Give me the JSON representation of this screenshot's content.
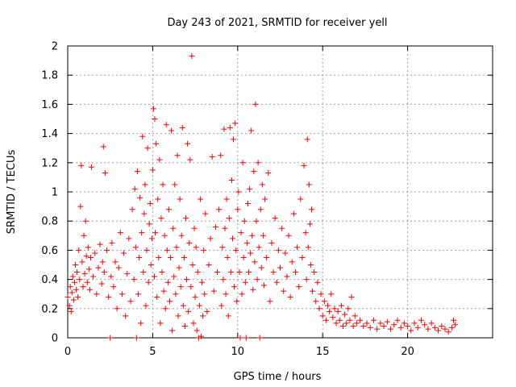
{
  "chart_data": {
    "type": "scatter",
    "title": "Day 243 of 2021, SRMTID for receiver yell",
    "xlabel": "GPS time / hours",
    "ylabel": "SRMTID / TECUs",
    "xlim": [
      0,
      25
    ],
    "ylim": [
      0,
      2
    ],
    "x_ticks": [
      0,
      5,
      10,
      15,
      20
    ],
    "x_tick_labels": [
      "0",
      "5",
      "10",
      "15",
      "20"
    ],
    "y_ticks": [
      0,
      0.2,
      0.4,
      0.6,
      0.8,
      1,
      1.2,
      1.4,
      1.6,
      1.8,
      2
    ],
    "y_tick_labels": [
      "0",
      "0.2",
      "0.4",
      "0.6",
      "0.8",
      "1",
      "1.2",
      "1.4",
      "1.6",
      "1.8",
      "2"
    ],
    "grid": true,
    "marker": "+",
    "series_color": "#ff0000",
    "series": [
      {
        "name": "SRMTID",
        "points": [
          [
            0.0,
            0.28
          ],
          [
            0.1,
            0.22
          ],
          [
            0.15,
            0.35
          ],
          [
            0.2,
            0.18
          ],
          [
            0.25,
            0.31
          ],
          [
            0.3,
            0.42
          ],
          [
            0.35,
            0.26
          ],
          [
            0.4,
            0.38
          ],
          [
            0.45,
            0.5
          ],
          [
            0.5,
            0.33
          ],
          [
            0.55,
            0.45
          ],
          [
            0.6,
            0.28
          ],
          [
            0.65,
            0.6
          ],
          [
            0.7,
            0.4
          ],
          [
            0.75,
            0.9
          ],
          [
            0.8,
            1.18
          ],
          [
            0.85,
            0.52
          ],
          [
            0.9,
            0.35
          ],
          [
            0.95,
            0.7
          ],
          [
            1.0,
            0.44
          ],
          [
            1.05,
            0.8
          ],
          [
            1.1,
            0.56
          ],
          [
            1.15,
            0.38
          ],
          [
            1.2,
            0.62
          ],
          [
            1.25,
            0.47
          ],
          [
            1.3,
            0.33
          ],
          [
            1.35,
            0.55
          ],
          [
            1.4,
            1.17
          ],
          [
            1.5,
            0.42
          ],
          [
            1.6,
            0.58
          ],
          [
            1.7,
            0.3
          ],
          [
            1.8,
            0.48
          ],
          [
            1.9,
            0.64
          ],
          [
            2.0,
            0.37
          ],
          [
            2.05,
            0.52
          ],
          [
            2.1,
            1.31
          ],
          [
            2.15,
            0.45
          ],
          [
            2.2,
            1.13
          ],
          [
            2.3,
            0.6
          ],
          [
            2.4,
            0.28
          ],
          [
            2.5,
            0.0
          ],
          [
            2.55,
            0.42
          ],
          [
            2.6,
            0.65
          ],
          [
            2.7,
            0.35
          ],
          [
            2.8,
            0.52
          ],
          [
            2.9,
            0.2
          ],
          [
            3.0,
            0.48
          ],
          [
            3.1,
            0.72
          ],
          [
            3.2,
            0.3
          ],
          [
            3.3,
            0.58
          ],
          [
            3.4,
            0.15
          ],
          [
            3.5,
            0.44
          ],
          [
            3.6,
            0.68
          ],
          [
            3.7,
            0.25
          ],
          [
            3.8,
            0.88
          ],
          [
            3.9,
            0.4
          ],
          [
            3.95,
            1.02
          ],
          [
            4.0,
            0.62
          ],
          [
            4.05,
            0.0
          ],
          [
            4.1,
            1.14
          ],
          [
            4.15,
            0.3
          ],
          [
            4.2,
            0.55
          ],
          [
            4.25,
            0.96
          ],
          [
            4.3,
            0.1
          ],
          [
            4.35,
            0.72
          ],
          [
            4.4,
            1.38
          ],
          [
            4.45,
            0.45
          ],
          [
            4.5,
            0.85
          ],
          [
            4.55,
            1.05
          ],
          [
            4.6,
            0.22
          ],
          [
            4.65,
            0.6
          ],
          [
            4.7,
            1.3
          ],
          [
            4.75,
            0.38
          ],
          [
            4.8,
            0.78
          ],
          [
            4.85,
            0.92
          ],
          [
            4.9,
            0.5
          ],
          [
            4.95,
            0.68
          ],
          [
            5.0,
            1.15
          ],
          [
            5.05,
            1.57
          ],
          [
            5.1,
            0.42
          ],
          [
            5.12,
            1.5
          ],
          [
            5.15,
            0.72
          ],
          [
            5.2,
            1.33
          ],
          [
            5.25,
            0.28
          ],
          [
            5.3,
            0.95
          ],
          [
            5.35,
            0.55
          ],
          [
            5.4,
            1.22
          ],
          [
            5.45,
            0.1
          ],
          [
            5.5,
            0.82
          ],
          [
            5.55,
            0.45
          ],
          [
            5.6,
            1.05
          ],
          [
            5.65,
            0.32
          ],
          [
            5.7,
            0.7
          ],
          [
            5.75,
            0.2
          ],
          [
            5.8,
            1.46
          ],
          [
            5.85,
            0.6
          ],
          [
            5.9,
            0.38
          ],
          [
            5.95,
            0.88
          ],
          [
            6.0,
            0.25
          ],
          [
            6.05,
            0.55
          ],
          [
            6.1,
            1.42
          ],
          [
            6.15,
            0.05
          ],
          [
            6.2,
            0.75
          ],
          [
            6.25,
            0.42
          ],
          [
            6.3,
            1.05
          ],
          [
            6.35,
            0.3
          ],
          [
            6.4,
            0.62
          ],
          [
            6.45,
            1.25
          ],
          [
            6.5,
            0.15
          ],
          [
            6.55,
            0.48
          ],
          [
            6.6,
            0.95
          ],
          [
            6.65,
            0.35
          ],
          [
            6.7,
            0.7
          ],
          [
            6.75,
            1.44
          ],
          [
            6.8,
            0.22
          ],
          [
            6.85,
            0.55
          ],
          [
            6.9,
            0.08
          ],
          [
            6.95,
            0.82
          ],
          [
            7.0,
            0.4
          ],
          [
            7.05,
            1.33
          ],
          [
            7.1,
            0.18
          ],
          [
            7.15,
            0.65
          ],
          [
            7.2,
            1.22
          ],
          [
            7.25,
            0.35
          ],
          [
            7.3,
            1.93
          ],
          [
            7.35,
            0.5
          ],
          [
            7.4,
            0.1
          ],
          [
            7.45,
            0.75
          ],
          [
            7.5,
            0.28
          ],
          [
            7.55,
            0.62
          ],
          [
            7.6,
            0.05
          ],
          [
            7.65,
            0.45
          ],
          [
            7.7,
            0.0
          ],
          [
            7.75,
            0.22
          ],
          [
            7.8,
            0.95
          ],
          [
            7.85,
            0.01
          ],
          [
            7.9,
            0.38
          ],
          [
            7.95,
            0.15
          ],
          [
            8.0,
            0.6
          ],
          [
            8.05,
            0.3
          ],
          [
            8.1,
            0.85
          ],
          [
            8.2,
            0.18
          ],
          [
            8.3,
            0.5
          ],
          [
            8.4,
            0.68
          ],
          [
            8.5,
            1.24
          ],
          [
            8.6,
            0.32
          ],
          [
            8.7,
            0.76
          ],
          [
            8.8,
            0.45
          ],
          [
            8.9,
            0.88
          ],
          [
            9.0,
            1.25
          ],
          [
            9.05,
            0.22
          ],
          [
            9.1,
            0.62
          ],
          [
            9.15,
            0.4
          ],
          [
            9.2,
            1.43
          ],
          [
            9.25,
            0.75
          ],
          [
            9.3,
            0.3
          ],
          [
            9.35,
            0.95
          ],
          [
            9.4,
            0.55
          ],
          [
            9.45,
            0.15
          ],
          [
            9.5,
            0.82
          ],
          [
            9.55,
            1.44
          ],
          [
            9.6,
            0.45
          ],
          [
            9.65,
            1.08
          ],
          [
            9.7,
            0.68
          ],
          [
            9.75,
            1.36
          ],
          [
            9.8,
            0.35
          ],
          [
            9.85,
            1.47
          ],
          [
            9.9,
            0.6
          ],
          [
            9.95,
            0.25
          ],
          [
            10.0,
            0.88
          ],
          [
            10.05,
            1.0
          ],
          [
            10.1,
            0.45
          ],
          [
            10.15,
            0.0
          ],
          [
            10.2,
            0.72
          ],
          [
            10.25,
            0.3
          ],
          [
            10.3,
            1.2
          ],
          [
            10.35,
            0.55
          ],
          [
            10.4,
            0.8
          ],
          [
            10.45,
            0.38
          ],
          [
            10.5,
            0.0
          ],
          [
            10.55,
            0.65
          ],
          [
            10.6,
            0.92
          ],
          [
            10.65,
            0.45
          ],
          [
            10.7,
            1.02
          ],
          [
            10.75,
            0.58
          ],
          [
            10.8,
            1.42
          ],
          [
            10.85,
            0.7
          ],
          [
            10.9,
            0.33
          ],
          [
            10.95,
            1.14
          ],
          [
            11.0,
            0.52
          ],
          [
            11.05,
            1.6
          ],
          [
            11.1,
            0.8
          ],
          [
            11.15,
            0.4
          ],
          [
            11.2,
            1.2
          ],
          [
            11.25,
            0.62
          ],
          [
            11.3,
            0.0
          ],
          [
            11.35,
            0.88
          ],
          [
            11.4,
            0.48
          ],
          [
            11.45,
            1.05
          ],
          [
            11.5,
            0.7
          ],
          [
            11.55,
            0.36
          ],
          [
            11.6,
            0.95
          ],
          [
            11.7,
            0.55
          ],
          [
            11.8,
            1.13
          ],
          [
            11.9,
            0.25
          ],
          [
            12.0,
            0.65
          ],
          [
            12.1,
            0.45
          ],
          [
            12.2,
            0.82
          ],
          [
            12.3,
            0.38
          ],
          [
            12.4,
            0.6
          ],
          [
            12.5,
            0.48
          ],
          [
            12.6,
            0.75
          ],
          [
            12.7,
            0.32
          ],
          [
            12.8,
            0.58
          ],
          [
            12.9,
            0.42
          ],
          [
            13.0,
            0.7
          ],
          [
            13.1,
            0.28
          ],
          [
            13.2,
            0.52
          ],
          [
            13.3,
            0.85
          ],
          [
            13.4,
            0.45
          ],
          [
            13.5,
            0.62
          ],
          [
            13.6,
            0.35
          ],
          [
            13.7,
            0.95
          ],
          [
            13.8,
            0.55
          ],
          [
            13.9,
            1.18
          ],
          [
            14.0,
            0.72
          ],
          [
            14.05,
            0.4
          ],
          [
            14.1,
            1.36
          ],
          [
            14.15,
            0.62
          ],
          [
            14.2,
            1.05
          ],
          [
            14.25,
            0.78
          ],
          [
            14.3,
            0.5
          ],
          [
            14.35,
            0.88
          ],
          [
            14.4,
            0.32
          ],
          [
            14.5,
            0.45
          ],
          [
            14.6,
            0.25
          ],
          [
            14.7,
            0.38
          ],
          [
            14.8,
            0.2
          ],
          [
            14.9,
            0.3
          ],
          [
            15.0,
            0.15
          ],
          [
            15.1,
            0.25
          ],
          [
            15.2,
            0.12
          ],
          [
            15.3,
            0.22
          ],
          [
            15.4,
            0.18
          ],
          [
            15.5,
            0.3
          ],
          [
            15.6,
            0.14
          ],
          [
            15.7,
            0.2
          ],
          [
            15.8,
            0.1
          ],
          [
            15.9,
            0.18
          ],
          [
            16.0,
            0.12
          ],
          [
            16.1,
            0.22
          ],
          [
            16.2,
            0.08
          ],
          [
            16.3,
            0.16
          ],
          [
            16.4,
            0.1
          ],
          [
            16.5,
            0.2
          ],
          [
            16.6,
            0.12
          ],
          [
            16.7,
            0.28
          ],
          [
            16.8,
            0.08
          ],
          [
            16.9,
            0.15
          ],
          [
            17.0,
            0.1
          ],
          [
            17.2,
            0.12
          ],
          [
            17.4,
            0.08
          ],
          [
            17.6,
            0.1
          ],
          [
            17.8,
            0.07
          ],
          [
            18.0,
            0.12
          ],
          [
            18.2,
            0.06
          ],
          [
            18.4,
            0.1
          ],
          [
            18.6,
            0.08
          ],
          [
            18.8,
            0.11
          ],
          [
            19.0,
            0.06
          ],
          [
            19.2,
            0.09
          ],
          [
            19.4,
            0.12
          ],
          [
            19.6,
            0.07
          ],
          [
            19.8,
            0.1
          ],
          [
            20.0,
            0.08
          ],
          [
            20.2,
            0.05
          ],
          [
            20.4,
            0.1
          ],
          [
            20.6,
            0.07
          ],
          [
            20.8,
            0.12
          ],
          [
            21.0,
            0.09
          ],
          [
            21.2,
            0.06
          ],
          [
            21.4,
            0.1
          ],
          [
            21.6,
            0.07
          ],
          [
            21.8,
            0.05
          ],
          [
            22.0,
            0.08
          ],
          [
            22.2,
            0.06
          ],
          [
            22.4,
            0.04
          ],
          [
            22.6,
            0.07
          ],
          [
            22.7,
            0.12
          ],
          [
            22.8,
            0.09
          ]
        ]
      }
    ]
  }
}
